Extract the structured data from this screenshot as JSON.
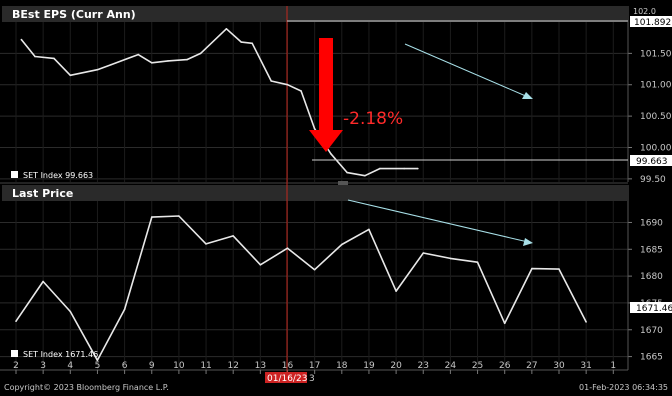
{
  "chart_data": [
    {
      "type": "line",
      "title": "BEst EPS (Curr Ann)",
      "legend": "SET Index  99.663",
      "ylim": [
        99.45,
        102.0
      ],
      "y_ticks": [
        "101.50",
        "101.00",
        "100.50",
        "100.00",
        "99.50"
      ],
      "y_ticks_values": [
        101.5,
        101.0,
        100.5,
        100.0,
        99.5
      ],
      "top_partial_tick": "102.0",
      "last_value_label": "99.663",
      "peak_value_label": "101.892",
      "peak_value": 101.892,
      "annotation": "-2.18%",
      "series": [
        {
          "values": [
            101.72,
            101.45,
            101.42,
            101.15,
            101.24,
            101.32,
            101.48,
            101.35,
            101.38,
            101.4,
            101.5,
            101.892,
            101.68,
            101.66,
            101.06,
            101.0,
            100.9,
            100.3,
            99.9,
            99.6,
            99.55,
            99.663,
            99.663,
            99.663
          ]
        }
      ],
      "x_index": [
        0.2,
        0.7,
        1.4,
        2.0,
        3.0,
        3.5,
        4.5,
        5.0,
        5.6,
        6.3,
        6.8,
        7.75,
        8.3,
        8.7,
        9.4,
        10.0,
        10.5,
        11.0,
        11.6,
        12.2,
        12.85,
        13.4,
        14.3,
        14.8
      ]
    },
    {
      "type": "line",
      "title": "Last Price",
      "legend": "SET Index  1671.46",
      "ylim": [
        1662.5,
        1694
      ],
      "y_ticks": [
        "1690",
        "1685",
        "1680",
        "1675",
        "1670",
        "1665"
      ],
      "y_ticks_values": [
        1690,
        1685,
        1680,
        1675,
        1670,
        1665
      ],
      "last_value_label": "1671.46",
      "series": [
        {
          "values": [
            1671.6,
            1679.0,
            1673.4,
            1664.3,
            1673.8,
            1691.0,
            1691.2,
            1686.0,
            1687.5,
            1682.1,
            1685.2,
            1681.2,
            1685.9,
            1688.7,
            1677.2,
            1684.3,
            1683.3,
            1682.6,
            1671.2,
            1681.4,
            1681.3,
            1671.46
          ]
        }
      ],
      "x_index": [
        0,
        1,
        2,
        3,
        4,
        5,
        6,
        7,
        8,
        9,
        10,
        11,
        12,
        13,
        14,
        15,
        16,
        17,
        18,
        19,
        20,
        21
      ]
    }
  ],
  "x_axis": {
    "tick_labels": [
      "2",
      "3",
      "4",
      "5",
      "6",
      "9",
      "10",
      "11",
      "12",
      "13",
      "16",
      "17",
      "18",
      "19",
      "20",
      "23",
      "24",
      "25",
      "26",
      "27",
      "30",
      "31",
      "1"
    ],
    "highlight_label": "01/16/23",
    "highlight_suffix": "3",
    "highlight_index": 10
  },
  "footer": {
    "copyright": "Copyright© 2023 Bloomberg Finance L.P.",
    "timestamp": "01-Feb-2023 06:34:35"
  },
  "colors": {
    "background": "#000000",
    "line": "#e8e8e8",
    "grid": "#2b2b2b",
    "header_bar": "#2a2a2a",
    "title_text": "#ffffff",
    "axis_text": "#c8c8c8",
    "marker": "#c0281e",
    "arrow": "#ff0000",
    "annotation": "#ff2a2a",
    "trend_arrow": "#a8e0e8",
    "value_box_bg": "#ffffff",
    "value_box_text": "#000000",
    "highlight_label_bg": "#cc2222"
  }
}
